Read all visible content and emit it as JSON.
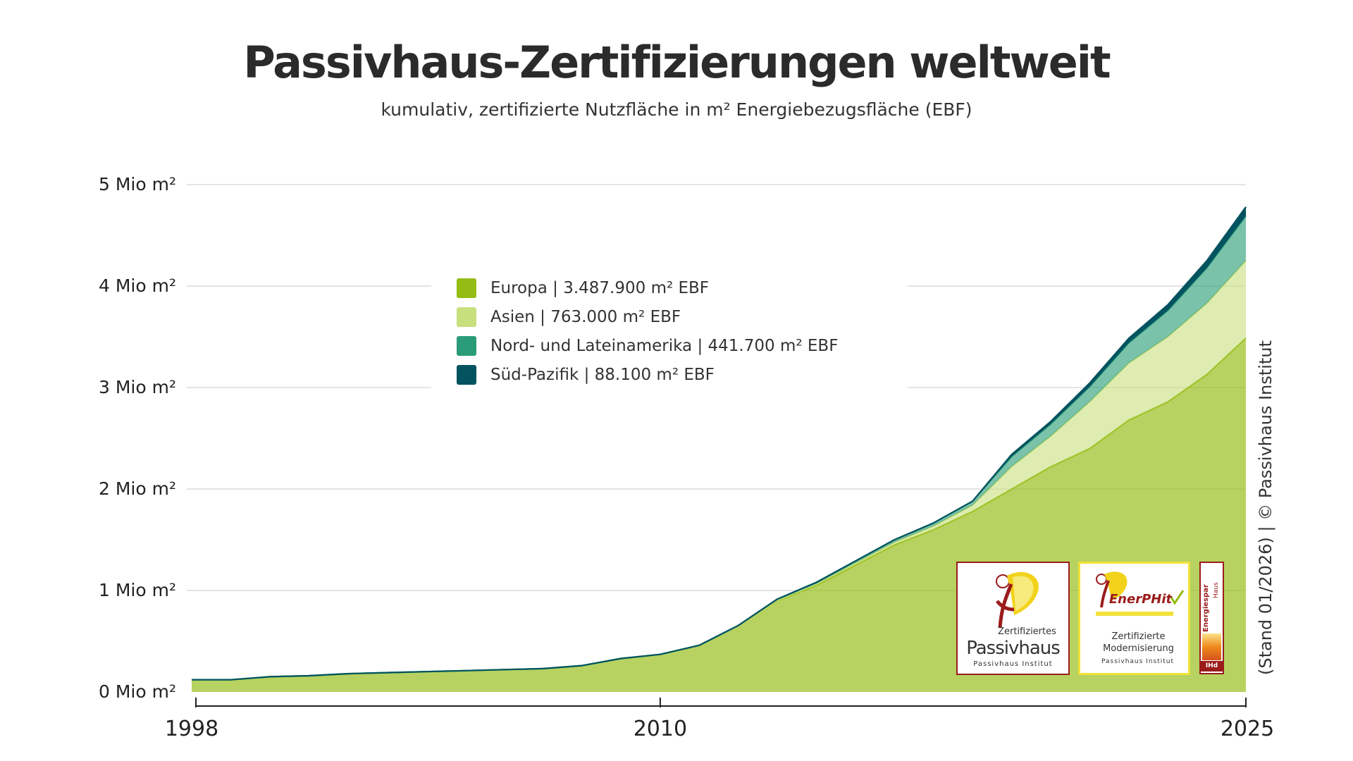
{
  "title": "Passivhaus-Zertifizierungen weltweit",
  "subtitle": "kumulativ, zertifizierte Nutzfläche in m² Energiebezugsfläche (EBF)",
  "source": "(Stand 01/2026) | © Passivhaus Institut",
  "colors": {
    "europa": "#95bc14",
    "asien": "#c8df7d",
    "amerika": "#2a9c78",
    "suedpazifik": "#02535f",
    "grid": "#d4d4d4"
  },
  "logos": {
    "passivhaus": {
      "line1": "Zertifiziertes",
      "line2": "Passivhaus",
      "line3": "Passivhaus Institut"
    },
    "enerphit": {
      "brand": "EnerPHit",
      "line1": "Zertifizierte",
      "line2": "Modernisierung",
      "line3": "Passivhaus Institut"
    },
    "energiespar": {
      "line1": "Energiespar",
      "line2": "Haus",
      "line3": "IHd"
    }
  },
  "chart_data": {
    "type": "area",
    "stacked": true,
    "title": "Passivhaus-Zertifizierungen weltweit",
    "subtitle": "kumulativ, zertifizierte Nutzfläche in m² Energiebezugsfläche (EBF)",
    "x": [
      1998,
      1999,
      2000,
      2001,
      2002,
      2003,
      2004,
      2005,
      2006,
      2007,
      2008,
      2009,
      2010,
      2011,
      2012,
      2013,
      2014,
      2015,
      2016,
      2017,
      2018,
      2019,
      2020,
      2021,
      2022,
      2023,
      2024,
      2025
    ],
    "xticks": [
      "1998",
      "2010",
      "2025"
    ],
    "yticks": [
      "0 Mio m²",
      "1 Mio m²",
      "2 Mio m²",
      "3 Mio m²",
      "4 Mio m²",
      "5 Mio m²"
    ],
    "ylim": [
      0,
      5000000
    ],
    "legend_position": "top-center",
    "series": [
      {
        "name": "Europa",
        "label": "Europa | 3.487.900 m² EBF",
        "color": "#95bc14",
        "values": [
          120000,
          120000,
          150000,
          160000,
          180000,
          190000,
          200000,
          210000,
          220000,
          230000,
          260000,
          330000,
          370000,
          460000,
          650000,
          900000,
          1050000,
          1250000,
          1450000,
          1600000,
          1780000,
          2000000,
          2220000,
          2400000,
          2680000,
          2860000,
          3130000,
          3487900
        ]
      },
      {
        "name": "Asien",
        "label": "Asien | 763.000 m² EBF",
        "color": "#c8df7d",
        "values": [
          0,
          0,
          0,
          0,
          0,
          0,
          0,
          0,
          0,
          0,
          0,
          0,
          0,
          0,
          0,
          5000,
          15000,
          20000,
          25000,
          35000,
          60000,
          220000,
          300000,
          460000,
          560000,
          640000,
          700000,
          763000
        ]
      },
      {
        "name": "Nord- und Lateinamerika",
        "label": "Nord- und Lateinamerika | 441.700 m² EBF",
        "color": "#2a9c78",
        "values": [
          0,
          0,
          0,
          0,
          0,
          0,
          0,
          0,
          0,
          0,
          0,
          0,
          0,
          0,
          5000,
          10000,
          15000,
          20000,
          25000,
          30000,
          40000,
          100000,
          120000,
          150000,
          200000,
          260000,
          350000,
          441700
        ]
      },
      {
        "name": "Süd-Pazifik",
        "label": "Süd-Pazifik | 88.100 m² EBF",
        "color": "#02535f",
        "values": [
          0,
          0,
          0,
          0,
          0,
          0,
          0,
          0,
          0,
          0,
          0,
          0,
          0,
          0,
          0,
          0,
          0,
          0,
          0,
          0,
          0,
          20000,
          25000,
          35000,
          45000,
          55000,
          70000,
          88100
        ]
      }
    ]
  }
}
